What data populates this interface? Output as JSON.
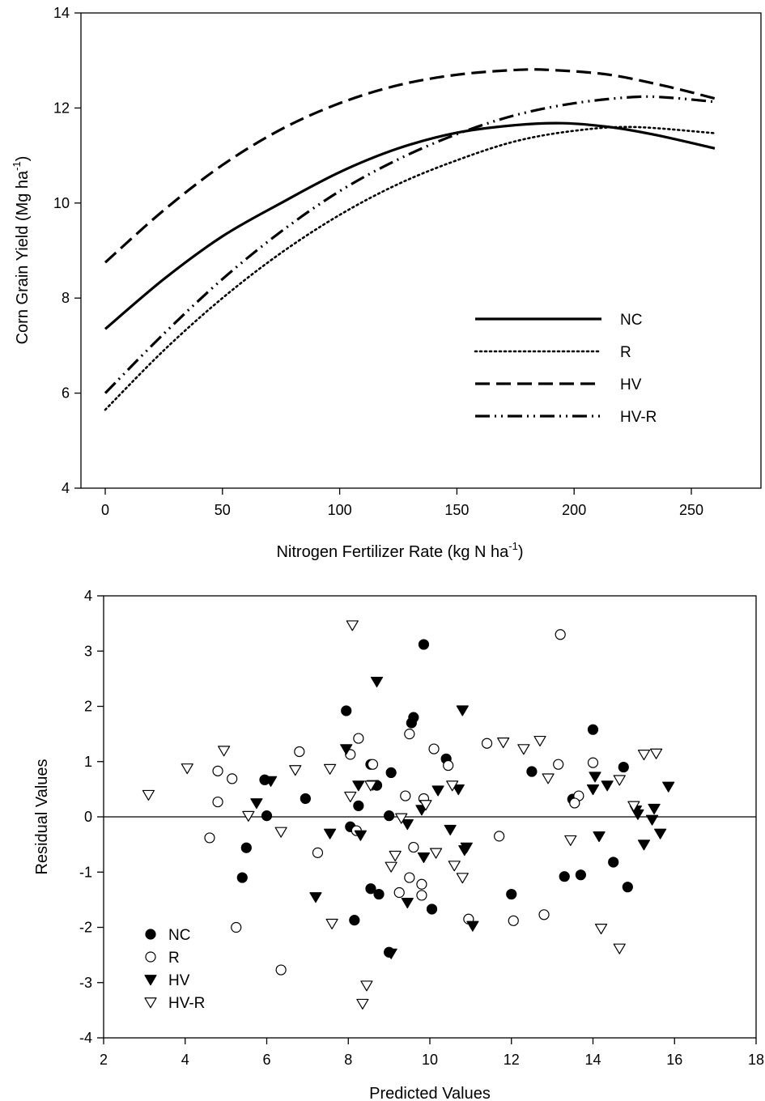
{
  "chart_data": [
    {
      "type": "line",
      "xlabel": "Nitrogen Fertilizer Rate (kg N ha",
      "xlabel_sup": "-1",
      "xlabel_tail": ")",
      "ylabel": "Corn Grain Yield (Mg ha",
      "ylabel_sup": "-1",
      "ylabel_tail": ")",
      "xlim": [
        0,
        260
      ],
      "ylim": [
        4,
        14
      ],
      "xticks": [
        0,
        50,
        100,
        150,
        200,
        250
      ],
      "yticks": [
        4,
        6,
        8,
        10,
        12,
        14
      ],
      "legend_position": "bottom-right",
      "series": [
        {
          "name": "NC",
          "style": "solid",
          "x": [
            0,
            25,
            50,
            75,
            100,
            125,
            150,
            175,
            195,
            215,
            235,
            260
          ],
          "y": [
            7.35,
            8.4,
            9.3,
            10.0,
            10.65,
            11.15,
            11.48,
            11.64,
            11.68,
            11.6,
            11.43,
            11.15
          ]
        },
        {
          "name": "R",
          "style": "dotted",
          "x": [
            0,
            25,
            50,
            75,
            100,
            125,
            150,
            175,
            200,
            225,
            260
          ],
          "y": [
            5.65,
            6.9,
            8.0,
            8.95,
            9.75,
            10.4,
            10.9,
            11.3,
            11.52,
            11.6,
            11.47
          ]
        },
        {
          "name": "HV",
          "style": "dashed",
          "x": [
            0,
            25,
            50,
            75,
            100,
            125,
            150,
            175,
            190,
            215,
            240,
            260
          ],
          "y": [
            8.75,
            9.85,
            10.8,
            11.55,
            12.1,
            12.48,
            12.7,
            12.8,
            12.8,
            12.7,
            12.45,
            12.2
          ]
        },
        {
          "name": "HV-R",
          "style": "dash-dot-dot",
          "x": [
            0,
            25,
            50,
            75,
            100,
            125,
            150,
            175,
            200,
            225,
            240,
            260
          ],
          "y": [
            6.0,
            7.25,
            8.4,
            9.4,
            10.25,
            10.92,
            11.45,
            11.85,
            12.1,
            12.23,
            12.22,
            12.13
          ]
        }
      ]
    },
    {
      "type": "scatter",
      "xlabel": "Predicted Values",
      "ylabel": "Residual Values",
      "xlim": [
        2,
        18
      ],
      "ylim": [
        -4,
        4
      ],
      "xticks": [
        2,
        4,
        6,
        8,
        10,
        12,
        14,
        16,
        18
      ],
      "yticks": [
        -4,
        -3,
        -2,
        -1,
        0,
        1,
        2,
        3,
        4
      ],
      "reference_line_y": 0,
      "legend_position": "bottom-left",
      "series": [
        {
          "name": "NC",
          "marker": "filled-circle",
          "points": [
            [
              9.85,
              3.12
            ],
            [
              7.95,
              1.92
            ],
            [
              9.6,
              1.8
            ],
            [
              9.55,
              1.7
            ],
            [
              14.0,
              1.58
            ],
            [
              10.4,
              1.05
            ],
            [
              8.55,
              0.95
            ],
            [
              9.05,
              0.8
            ],
            [
              12.5,
              0.82
            ],
            [
              14.75,
              0.9
            ],
            [
              5.95,
              0.67
            ],
            [
              6.95,
              0.33
            ],
            [
              13.5,
              0.32
            ],
            [
              8.7,
              0.57
            ],
            [
              8.25,
              0.2
            ],
            [
              6.0,
              0.02
            ],
            [
              9.0,
              0.02
            ],
            [
              8.05,
              -0.18
            ],
            [
              5.5,
              -0.56
            ],
            [
              5.4,
              -1.1
            ],
            [
              13.3,
              -1.08
            ],
            [
              13.7,
              -1.05
            ],
            [
              14.5,
              -0.82
            ],
            [
              14.85,
              -1.27
            ],
            [
              8.55,
              -1.3
            ],
            [
              8.75,
              -1.4
            ],
            [
              12.0,
              -1.4
            ],
            [
              10.05,
              -1.67
            ],
            [
              8.15,
              -1.87
            ],
            [
              9.0,
              -2.45
            ]
          ]
        },
        {
          "name": "R",
          "marker": "open-circle",
          "points": [
            [
              13.2,
              3.3
            ],
            [
              8.25,
              1.42
            ],
            [
              9.5,
              1.5
            ],
            [
              6.8,
              1.18
            ],
            [
              10.1,
              1.23
            ],
            [
              11.4,
              1.33
            ],
            [
              8.05,
              1.13
            ],
            [
              13.15,
              0.95
            ],
            [
              14.0,
              0.98
            ],
            [
              8.6,
              0.95
            ],
            [
              10.45,
              0.93
            ],
            [
              4.8,
              0.83
            ],
            [
              5.15,
              0.69
            ],
            [
              4.8,
              0.27
            ],
            [
              9.4,
              0.38
            ],
            [
              13.65,
              0.38
            ],
            [
              13.55,
              0.25
            ],
            [
              9.85,
              0.33
            ],
            [
              4.6,
              -0.38
            ],
            [
              11.7,
              -0.35
            ],
            [
              8.2,
              -0.25
            ],
            [
              9.6,
              -0.55
            ],
            [
              7.25,
              -0.65
            ],
            [
              9.5,
              -1.1
            ],
            [
              9.8,
              -1.22
            ],
            [
              9.25,
              -1.37
            ],
            [
              9.8,
              -1.42
            ],
            [
              10.95,
              -1.85
            ],
            [
              12.05,
              -1.88
            ],
            [
              12.8,
              -1.77
            ],
            [
              5.25,
              -2.0
            ],
            [
              6.35,
              -2.77
            ]
          ]
        },
        {
          "name": "HV",
          "marker": "filled-triangle-down",
          "points": [
            [
              8.7,
              2.45
            ],
            [
              10.8,
              1.93
            ],
            [
              7.95,
              1.23
            ],
            [
              6.1,
              0.65
            ],
            [
              5.75,
              0.25
            ],
            [
              8.25,
              0.57
            ],
            [
              8.6,
              0.58
            ],
            [
              10.2,
              0.48
            ],
            [
              10.7,
              0.5
            ],
            [
              14.0,
              0.5
            ],
            [
              14.05,
              0.73
            ],
            [
              14.35,
              0.57
            ],
            [
              15.85,
              0.55
            ],
            [
              9.8,
              0.13
            ],
            [
              15.05,
              0.12
            ],
            [
              15.5,
              0.15
            ],
            [
              15.1,
              0.05
            ],
            [
              15.45,
              -0.05
            ],
            [
              9.45,
              -0.13
            ],
            [
              8.3,
              -0.33
            ],
            [
              7.55,
              -0.3
            ],
            [
              10.5,
              -0.23
            ],
            [
              15.65,
              -0.3
            ],
            [
              14.15,
              -0.35
            ],
            [
              9.85,
              -0.73
            ],
            [
              10.9,
              -0.55
            ],
            [
              10.85,
              -0.6
            ],
            [
              15.25,
              -0.5
            ],
            [
              7.2,
              -1.45
            ],
            [
              9.45,
              -1.55
            ],
            [
              11.05,
              -1.97
            ],
            [
              9.05,
              -2.47
            ]
          ]
        },
        {
          "name": "HV-R",
          "marker": "open-triangle-down",
          "points": [
            [
              8.1,
              3.47
            ],
            [
              4.95,
              1.2
            ],
            [
              11.8,
              1.35
            ],
            [
              12.3,
              1.23
            ],
            [
              12.7,
              1.38
            ],
            [
              15.25,
              1.13
            ],
            [
              15.55,
              1.15
            ],
            [
              4.05,
              0.88
            ],
            [
              6.7,
              0.85
            ],
            [
              7.55,
              0.87
            ],
            [
              12.9,
              0.7
            ],
            [
              14.65,
              0.67
            ],
            [
              3.1,
              0.4
            ],
            [
              8.05,
              0.37
            ],
            [
              8.55,
              0.57
            ],
            [
              10.55,
              0.57
            ],
            [
              15.0,
              0.2
            ],
            [
              9.9,
              0.22
            ],
            [
              5.55,
              0.02
            ],
            [
              9.3,
              -0.02
            ],
            [
              6.35,
              -0.27
            ],
            [
              13.45,
              -0.42
            ],
            [
              9.15,
              -0.7
            ],
            [
              10.15,
              -0.65
            ],
            [
              9.05,
              -0.9
            ],
            [
              10.6,
              -0.88
            ],
            [
              10.8,
              -1.1
            ],
            [
              7.6,
              -1.93
            ],
            [
              14.2,
              -2.02
            ],
            [
              14.65,
              -2.38
            ],
            [
              8.45,
              -3.05
            ],
            [
              8.35,
              -3.38
            ]
          ]
        }
      ]
    }
  ]
}
